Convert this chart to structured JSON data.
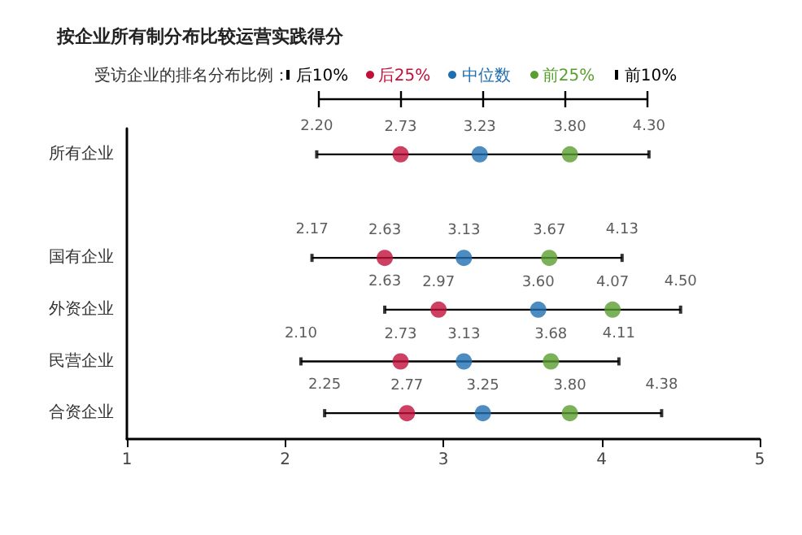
{
  "chart_data": {
    "type": "scatter",
    "orientation": "horizontal",
    "title": "按企业所有制分布比较运营实践得分",
    "legend_title": "受访企业的排名分布比例：",
    "legend": "top",
    "categories": [
      "所有企业",
      null,
      "国有企业",
      "外资企业",
      "民营企业",
      "合资企业"
    ],
    "series": [
      {
        "name": "后10%",
        "color": "#000000",
        "marker": "square",
        "values": [
          2.2,
          null,
          2.17,
          2.63,
          2.1,
          2.25
        ],
        "value_labels": [
          "2.20",
          null,
          "2.17",
          "2.63",
          "2.10",
          "2.25"
        ]
      },
      {
        "name": "后25%",
        "color": "#c0103a",
        "marker": "circle",
        "values": [
          2.73,
          null,
          2.63,
          2.97,
          2.73,
          2.77
        ],
        "value_labels": [
          "2.73",
          null,
          "2.63",
          "2.97",
          "2.73",
          "2.77"
        ]
      },
      {
        "name": "中位数",
        "color": "#1f6fb0",
        "marker": "circle",
        "values": [
          3.23,
          null,
          3.13,
          3.6,
          3.13,
          3.25
        ],
        "value_labels": [
          "3.23",
          null,
          "3.13",
          "3.60",
          "3.13",
          "3.25"
        ]
      },
      {
        "name": "前25%",
        "color": "#5a9e2f",
        "marker": "circle",
        "values": [
          3.8,
          null,
          3.67,
          4.07,
          3.68,
          3.8
        ],
        "value_labels": [
          "3.80",
          null,
          "3.67",
          "4.07",
          "3.68",
          "3.80"
        ]
      },
      {
        "name": "前10%",
        "color": "#000000",
        "marker": "square",
        "values": [
          4.3,
          null,
          4.13,
          4.5,
          4.11,
          4.38
        ],
        "value_labels": [
          "4.30",
          null,
          "4.13",
          "4.50",
          "4.11",
          "4.38"
        ]
      }
    ],
    "xlim": [
      1,
      5
    ],
    "xticks": [
      1,
      2,
      3,
      4,
      5
    ],
    "grid": false
  }
}
